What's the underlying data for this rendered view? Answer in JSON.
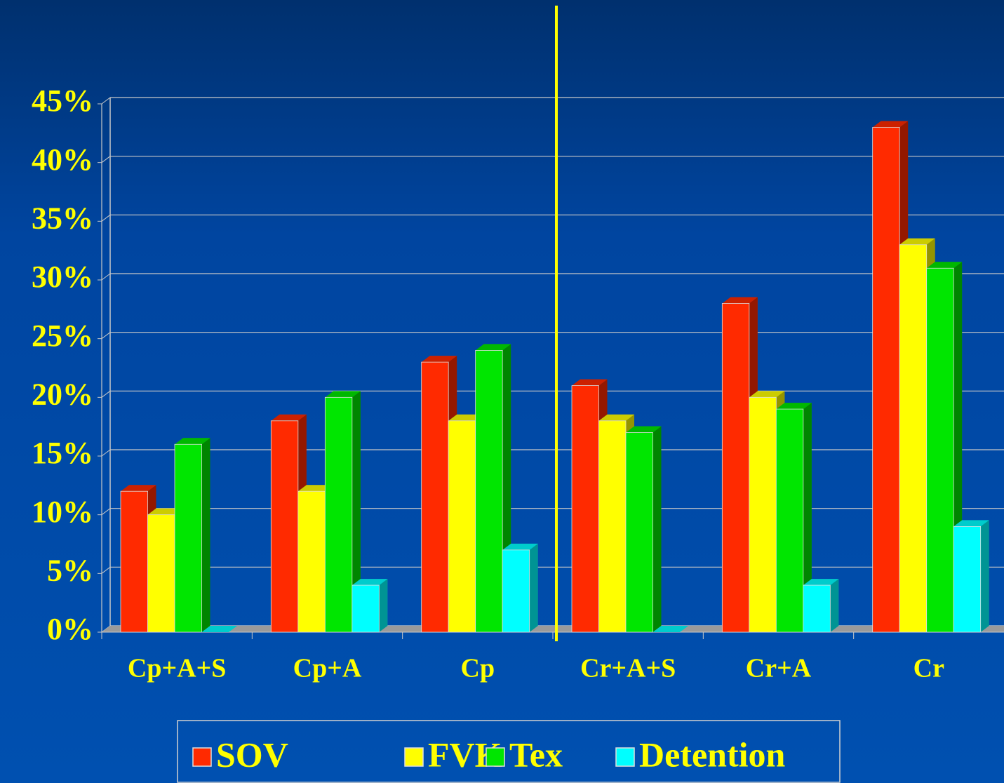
{
  "chart_data": {
    "type": "bar3d",
    "categories": [
      "Cp+A+S",
      "Cp+A",
      "Cp",
      "Cr+A+S",
      "Cr+A",
      "Cr"
    ],
    "series": [
      {
        "name": "SOV",
        "color": "#ff2a00",
        "values": [
          12,
          18,
          23,
          21,
          28,
          43
        ]
      },
      {
        "name": "FVK",
        "color": "#ffff00",
        "values": [
          10,
          12,
          18,
          18,
          20,
          33
        ]
      },
      {
        "name": "Tex",
        "color": "#00e600",
        "values": [
          16,
          20,
          24,
          17,
          19,
          31
        ]
      },
      {
        "name": "Detention",
        "color": "#00ffff",
        "values": [
          0,
          4,
          7,
          0,
          4,
          9
        ]
      }
    ],
    "ylim": [
      0,
      45
    ],
    "yticks": [
      {
        "value": 0,
        "label": "0%"
      },
      {
        "value": 5,
        "label": "5%"
      },
      {
        "value": 10,
        "label": "10%"
      },
      {
        "value": 15,
        "label": "15%"
      },
      {
        "value": 20,
        "label": "20%"
      },
      {
        "value": 25,
        "label": "25%"
      },
      {
        "value": 30,
        "label": "30%"
      },
      {
        "value": 35,
        "label": "35%"
      },
      {
        "value": 40,
        "label": "40%"
      },
      {
        "value": 45,
        "label": "45%"
      }
    ],
    "grid": true,
    "legend": "bottom"
  }
}
